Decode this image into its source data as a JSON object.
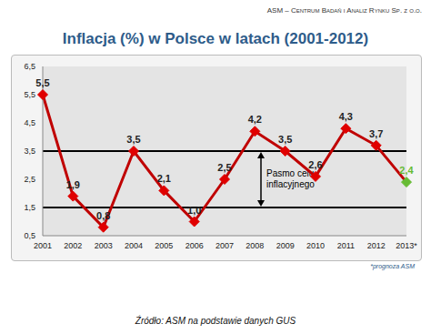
{
  "header": "ASM – Centrum Badań i Analiz Rynku Sp. z o.o.",
  "note": "*prognoza ASM",
  "source": "Źródło: ASM na podstawie danych GUS",
  "chart_data": {
    "type": "line",
    "title": "Inflacja (%) w Polsce w latach (2001-2012)",
    "categories": [
      "2001",
      "2002",
      "2003",
      "2004",
      "2005",
      "2006",
      "2007",
      "2008",
      "2009",
      "2010",
      "2011",
      "2012",
      "2013*"
    ],
    "values": [
      5.5,
      1.9,
      0.8,
      3.5,
      2.1,
      1.0,
      2.5,
      4.2,
      3.5,
      2.6,
      4.3,
      3.7,
      2.4
    ],
    "value_labels": [
      "5,5",
      "1,9",
      "0,8",
      "3,5",
      "2,1",
      "1,0",
      "2,5",
      "4,2",
      "3,5",
      "2,6",
      "4,3",
      "3,7",
      "2,4"
    ],
    "color": "#c00000",
    "colors": [
      "#e00000",
      "#e00000",
      "#e00000",
      "#e00000",
      "#e00000",
      "#e00000",
      "#e00000",
      "#e00000",
      "#e00000",
      "#e00000",
      "#e00000",
      "#e00000",
      "#66bb33"
    ],
    "marker": "diamond",
    "data_labels": true,
    "grid": false,
    "ylim": [
      0.5,
      6.5
    ],
    "yticks": [
      {
        "value": 0.5,
        "label": "0,5"
      },
      {
        "value": 1.5,
        "label": "1,5"
      },
      {
        "value": 2.5,
        "label": "2,5"
      },
      {
        "value": 3.5,
        "label": "3,5"
      },
      {
        "value": 4.5,
        "label": "4,5"
      },
      {
        "value": 5.5,
        "label": "5,5"
      },
      {
        "value": 6.5,
        "label": "6,5"
      }
    ],
    "band": {
      "label": "Pasmo celu inflacyjnego",
      "range": [
        1.5,
        3.5
      ]
    }
  }
}
